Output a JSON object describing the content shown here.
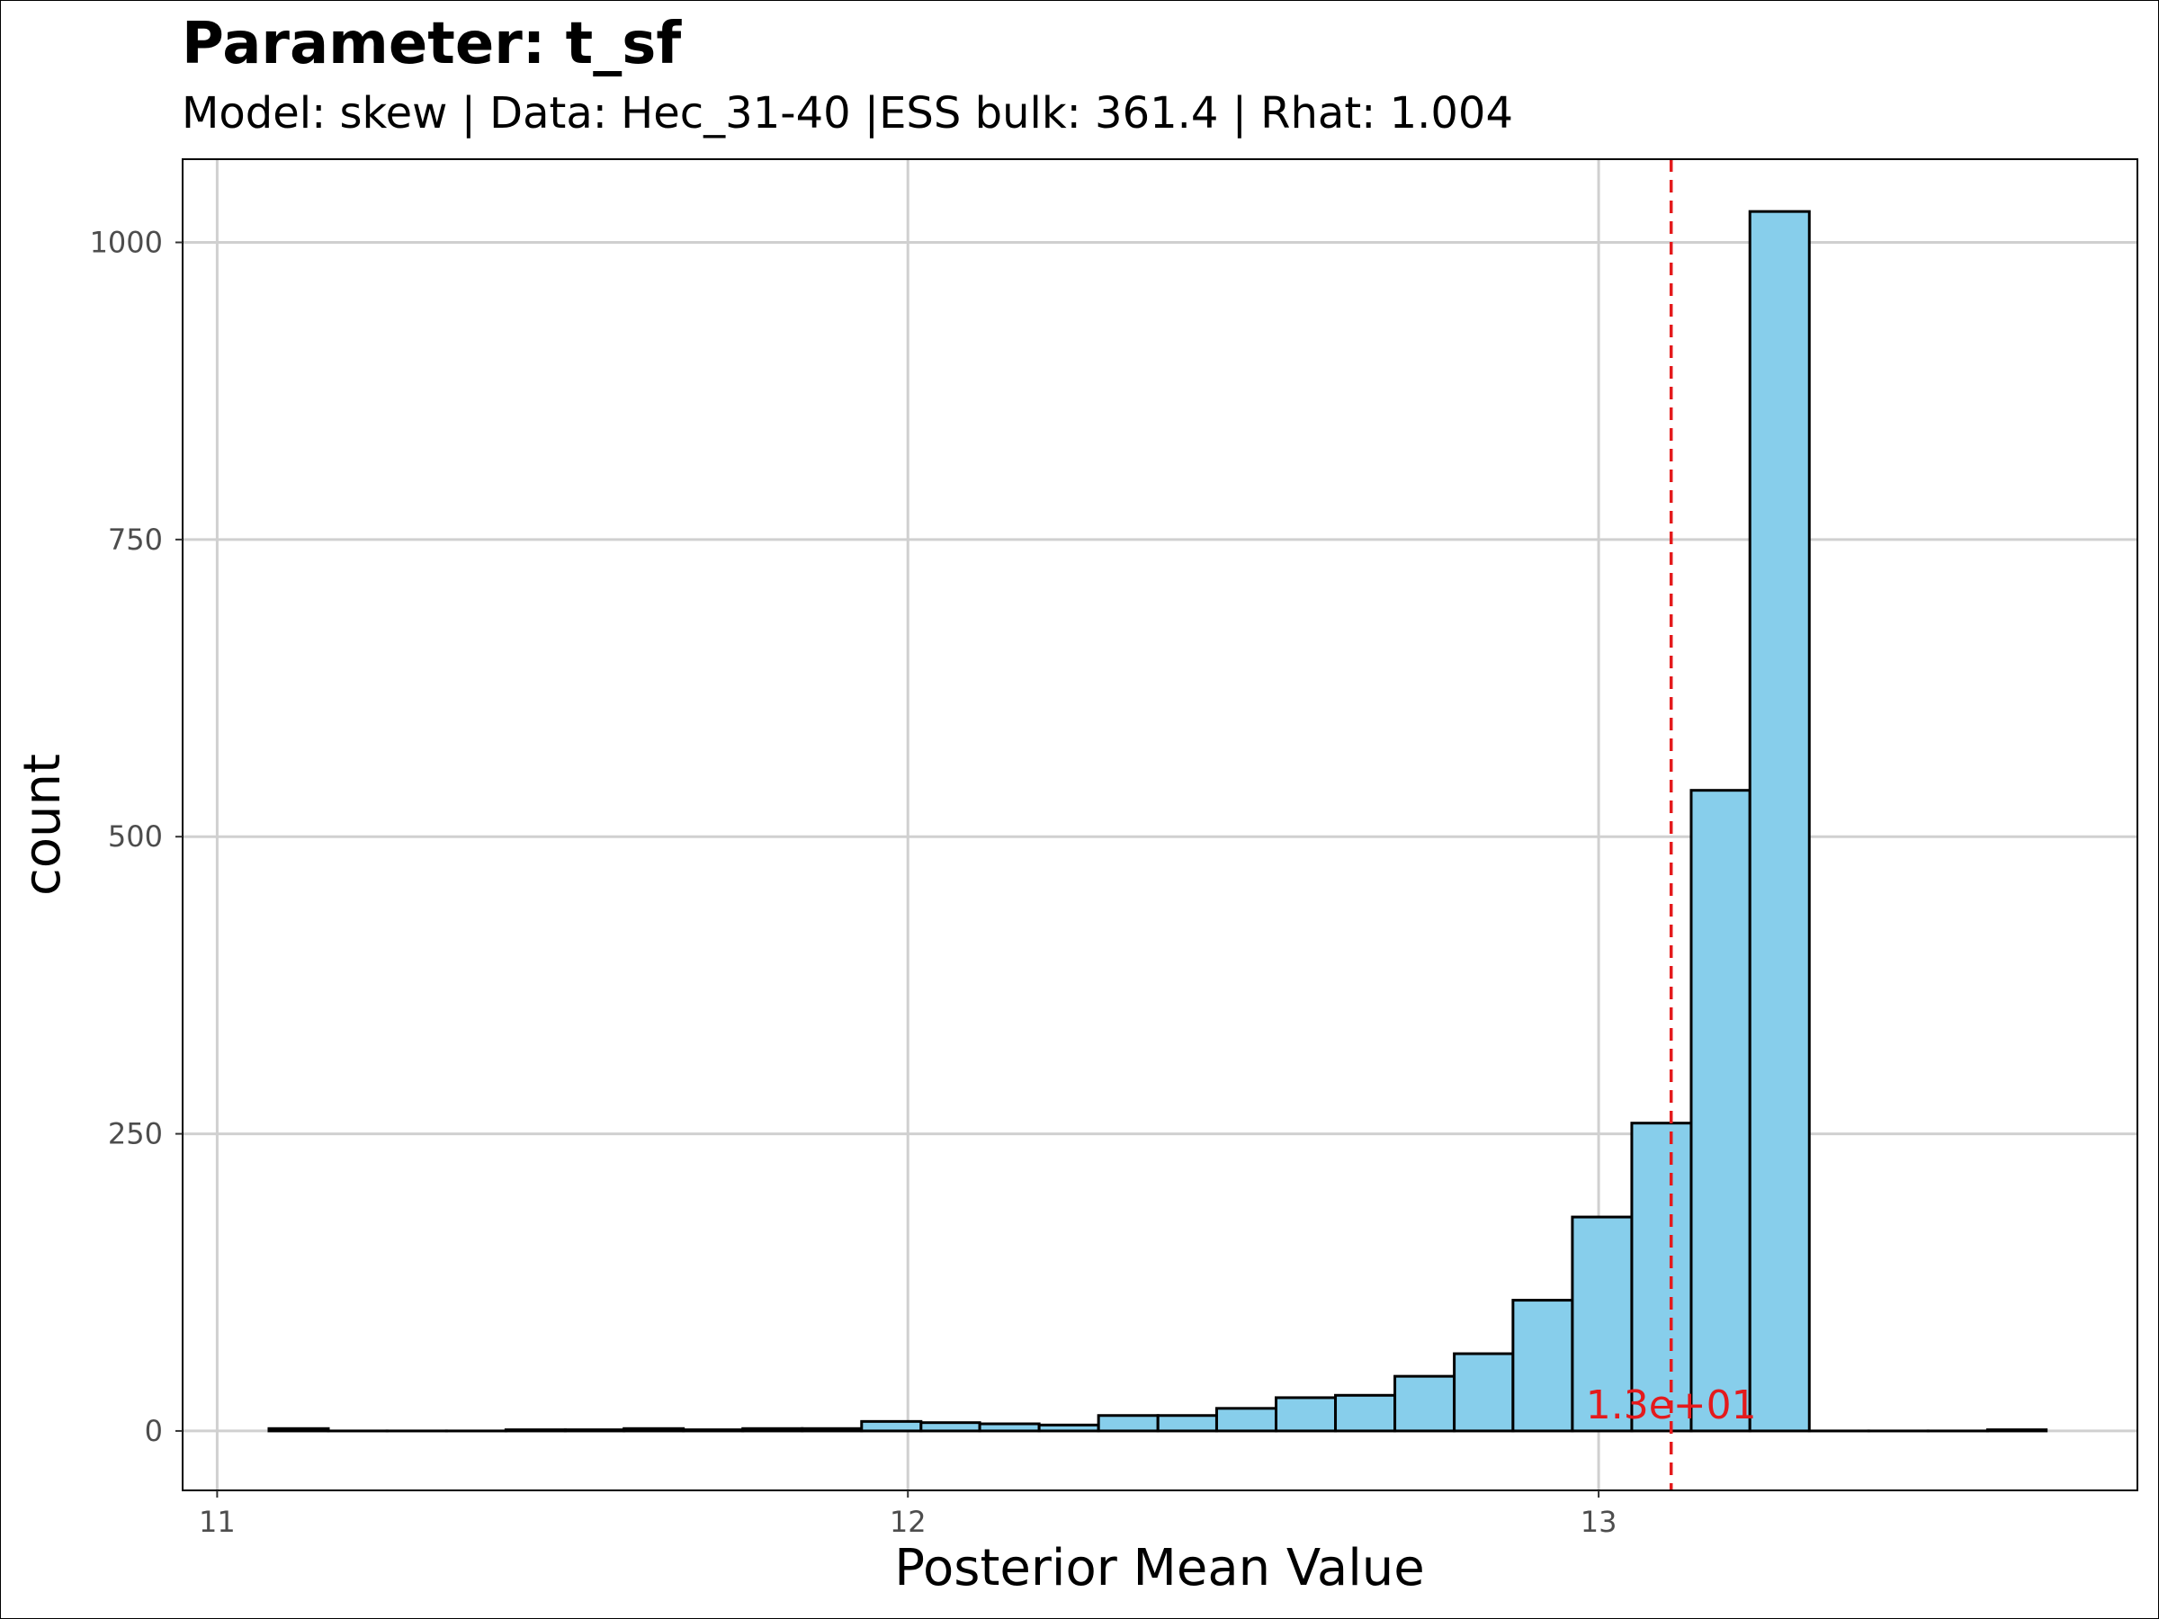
{
  "chart_data": {
    "type": "bar",
    "title": "Parameter: t_sf",
    "subtitle": "Model: skew | Data: Hec_31-40 |ESS bulk: 361.4 | Rhat: 1.004",
    "xlabel": "Posterior Mean Value",
    "ylabel": "count",
    "xlim": [
      10.95,
      13.78
    ],
    "ylim": [
      -50,
      1070
    ],
    "xticks": [
      11,
      12,
      13
    ],
    "xtick_labels": [
      "11",
      "12",
      "13"
    ],
    "yticks": [
      0,
      250,
      500,
      750,
      1000
    ],
    "ytick_labels": [
      "0",
      "250",
      "500",
      "750",
      "1000"
    ],
    "grid": true,
    "bar_fill": "#87CEEB",
    "bar_stroke": "#000000",
    "bins": [
      {
        "x0": 11.075,
        "x1": 11.161,
        "count": 2
      },
      {
        "x0": 11.161,
        "x1": 11.246,
        "count": 0
      },
      {
        "x0": 11.246,
        "x1": 11.332,
        "count": 0
      },
      {
        "x0": 11.332,
        "x1": 11.418,
        "count": 0
      },
      {
        "x0": 11.418,
        "x1": 11.504,
        "count": 1
      },
      {
        "x0": 11.504,
        "x1": 11.589,
        "count": 1
      },
      {
        "x0": 11.589,
        "x1": 11.675,
        "count": 2
      },
      {
        "x0": 11.675,
        "x1": 11.761,
        "count": 1
      },
      {
        "x0": 11.761,
        "x1": 11.847,
        "count": 2
      },
      {
        "x0": 11.847,
        "x1": 11.933,
        "count": 2
      },
      {
        "x0": 11.933,
        "x1": 12.019,
        "count": 8
      },
      {
        "x0": 12.019,
        "x1": 12.104,
        "count": 7
      },
      {
        "x0": 12.104,
        "x1": 12.19,
        "count": 6
      },
      {
        "x0": 12.19,
        "x1": 12.276,
        "count": 5
      },
      {
        "x0": 12.276,
        "x1": 12.362,
        "count": 13
      },
      {
        "x0": 12.362,
        "x1": 12.447,
        "count": 13
      },
      {
        "x0": 12.447,
        "x1": 12.533,
        "count": 19
      },
      {
        "x0": 12.533,
        "x1": 12.619,
        "count": 28
      },
      {
        "x0": 12.619,
        "x1": 12.705,
        "count": 30
      },
      {
        "x0": 12.705,
        "x1": 12.791,
        "count": 46
      },
      {
        "x0": 12.791,
        "x1": 12.876,
        "count": 65
      },
      {
        "x0": 12.876,
        "x1": 12.962,
        "count": 110
      },
      {
        "x0": 12.962,
        "x1": 13.048,
        "count": 180
      },
      {
        "x0": 13.048,
        "x1": 13.134,
        "count": 259
      },
      {
        "x0": 13.134,
        "x1": 13.219,
        "count": 539
      },
      {
        "x0": 13.219,
        "x1": 13.305,
        "count": 1026
      },
      {
        "x0": 13.305,
        "x1": 13.391,
        "count": 0
      },
      {
        "x0": 13.391,
        "x1": 13.477,
        "count": 0
      },
      {
        "x0": 13.477,
        "x1": 13.563,
        "count": 0
      },
      {
        "x0": 13.563,
        "x1": 13.648,
        "count": 1
      }
    ],
    "reference_line": {
      "x": 13.105,
      "color": "#e41a1c",
      "style": "dashed",
      "label": "1.3e+01"
    }
  }
}
